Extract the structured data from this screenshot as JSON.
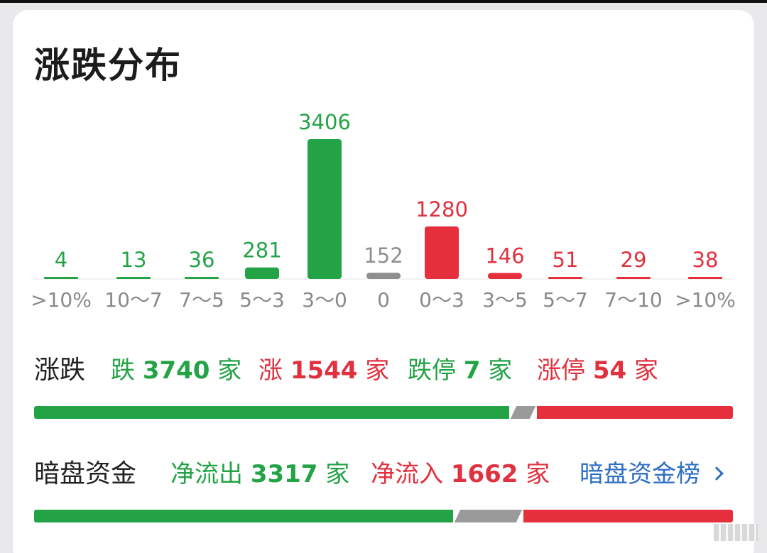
{
  "title": "涨跌分布",
  "chart_data": {
    "type": "bar",
    "categories": [
      ">10%",
      "10～7",
      "7～5",
      "5～3",
      "3～0",
      "0",
      "0～3",
      "3～5",
      "5～7",
      "7～10",
      ">10%"
    ],
    "values": [
      4,
      13,
      36,
      281,
      3406,
      152,
      1280,
      146,
      51,
      29,
      38
    ],
    "colors": [
      "#23a346",
      "#23a346",
      "#23a346",
      "#23a346",
      "#23a346",
      "#8f8f8f",
      "#e62f3c",
      "#e62f3c",
      "#e62f3c",
      "#e62f3c",
      "#e62f3c"
    ],
    "label_colors": [
      "#23a346",
      "#23a346",
      "#23a346",
      "#23a346",
      "#23a346",
      "#8f8f8f",
      "#e0313f",
      "#e0313f",
      "#e0313f",
      "#e0313f",
      "#e0313f"
    ],
    "ylim": [
      0,
      3406
    ]
  },
  "rise_fall": {
    "label": "涨跌",
    "fall_prefix": "跌",
    "fall_count": "3740",
    "fall_unit": "家",
    "rise_prefix": "涨",
    "rise_count": "1544",
    "rise_unit": "家",
    "limit_down_prefix": "跌停",
    "limit_down_count": "7",
    "limit_down_unit": "家",
    "limit_up_prefix": "涨停",
    "limit_up_count": "54",
    "limit_up_unit": "家",
    "bar": {
      "fall": 3740,
      "flat": 152,
      "rise": 1544
    }
  },
  "dark_pool": {
    "label": "暗盘资金",
    "outflow_prefix": "净流出",
    "outflow_count": "3317",
    "outflow_unit": "家",
    "inflow_prefix": "净流入",
    "inflow_count": "1662",
    "inflow_unit": "家",
    "link_label": "暗盘资金榜",
    "bar": {
      "outflow": 3317,
      "flat": 490,
      "inflow": 1662
    }
  },
  "colors": {
    "green": "#23a346",
    "red": "#e0313f",
    "gray": "#9a9a9a",
    "link": "#2f6fc4"
  }
}
